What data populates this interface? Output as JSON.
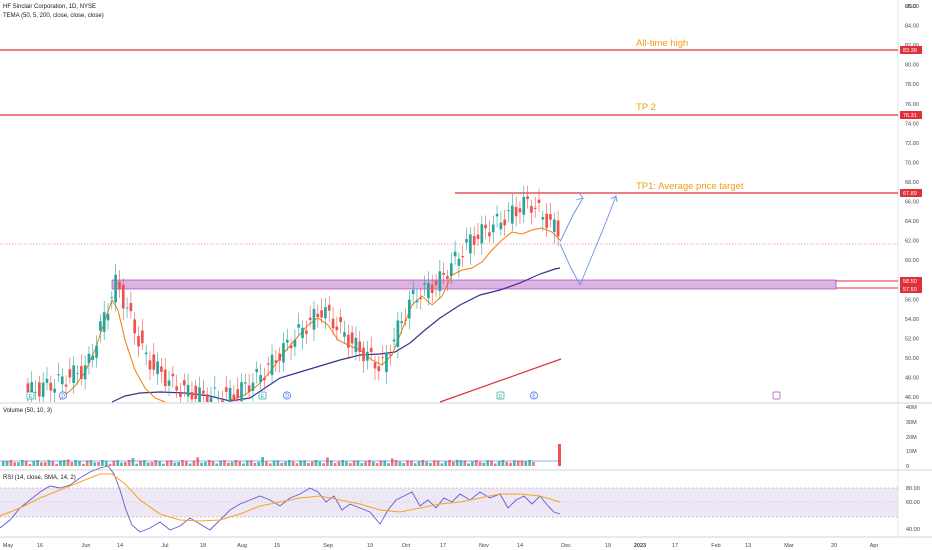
{
  "header": {
    "symbol_title": "HF Sinclair Corporation, 1D, NYSE",
    "indicator_label": "TEMA (50, 5, 200, close, close, close)"
  },
  "price_axis": {
    "currency": "USD",
    "ticks": [
      "86.00",
      "84.00",
      "82.00",
      "80.00",
      "78.00",
      "76.00",
      "74.00",
      "72.00",
      "70.00",
      "68.00",
      "66.00",
      "64.00",
      "62.00",
      "60.00",
      "58.00",
      "56.00",
      "54.00",
      "52.00",
      "50.00",
      "48.00",
      "46.00"
    ],
    "range": [
      46,
      88
    ]
  },
  "price_tags": [
    "83.38",
    "76.31",
    "67.89",
    "58.50",
    "57.50"
  ],
  "annotations": {
    "ath_label": "All-time high",
    "tp2_label": "TP 2",
    "tp1_label": "TP1: Average price target"
  },
  "volume_panel": {
    "label": "Volume (50, 10, 3)",
    "ticks": [
      "40M",
      "30M",
      "20M",
      "10M",
      "0"
    ]
  },
  "rsi_panel": {
    "label": "RSI (14, close, SMA, 14, 2)",
    "ticks": [
      "80.00",
      "60.00",
      "40.00"
    ]
  },
  "time_axis": {
    "labels": [
      "May",
      "16",
      "Jun",
      "14",
      "Jul",
      "18",
      "Aug",
      "15",
      "Sep",
      "19",
      "Oct",
      "17",
      "Nov",
      "14",
      "Dec",
      "19",
      "2023",
      "17",
      "Feb",
      "13",
      "Mar",
      "20",
      "Apr"
    ]
  },
  "event_markers": [
    "E",
    "D",
    "D",
    "E",
    "D",
    "E"
  ],
  "colors": {
    "up": "#26a69a",
    "down": "#ef5350",
    "level_line": "#e0303a",
    "zone_fill": "#ce93d8",
    "annotation": "#f39c12",
    "sma_line": "#3b2f8f",
    "fast_line": "#f57c00",
    "rsi_line": "#6a5acd",
    "projection": "#6b8fe0"
  },
  "chart_data": [
    {
      "type": "line",
      "title": "HF Sinclair Corporation, 1D, NYSE",
      "x": [
        "May",
        "16",
        "Jun",
        "14",
        "Jul",
        "18",
        "Aug",
        "15",
        "Sep",
        "19",
        "Oct",
        "17",
        "Nov",
        "14",
        "Dec"
      ],
      "ylim": [
        46,
        88
      ],
      "approx_close_path": [
        46.5,
        47.5,
        49.0,
        57.8,
        50.0,
        47.0,
        46.0,
        46.2,
        48.5,
        52.0,
        55.0,
        51.5,
        49.0,
        56.0,
        58.0,
        62.0,
        64.0,
        66.0,
        63.0
      ],
      "levels": [
        {
          "label": "All-time high",
          "value": 83.38
        },
        {
          "label": "TP 2",
          "value": 76.31
        },
        {
          "label": "TP1: Average price target",
          "value": 67.89
        }
      ],
      "zone": {
        "low": 57.5,
        "high": 58.5
      }
    },
    {
      "type": "bar",
      "title": "Volume (50, 10, 3)",
      "ylim": [
        0,
        40
      ],
      "last_bar_millions": 15
    },
    {
      "type": "line",
      "title": "RSI (14, close, SMA, 14, 2)",
      "ylim": [
        30,
        90
      ],
      "band": [
        40,
        70
      ]
    }
  ]
}
